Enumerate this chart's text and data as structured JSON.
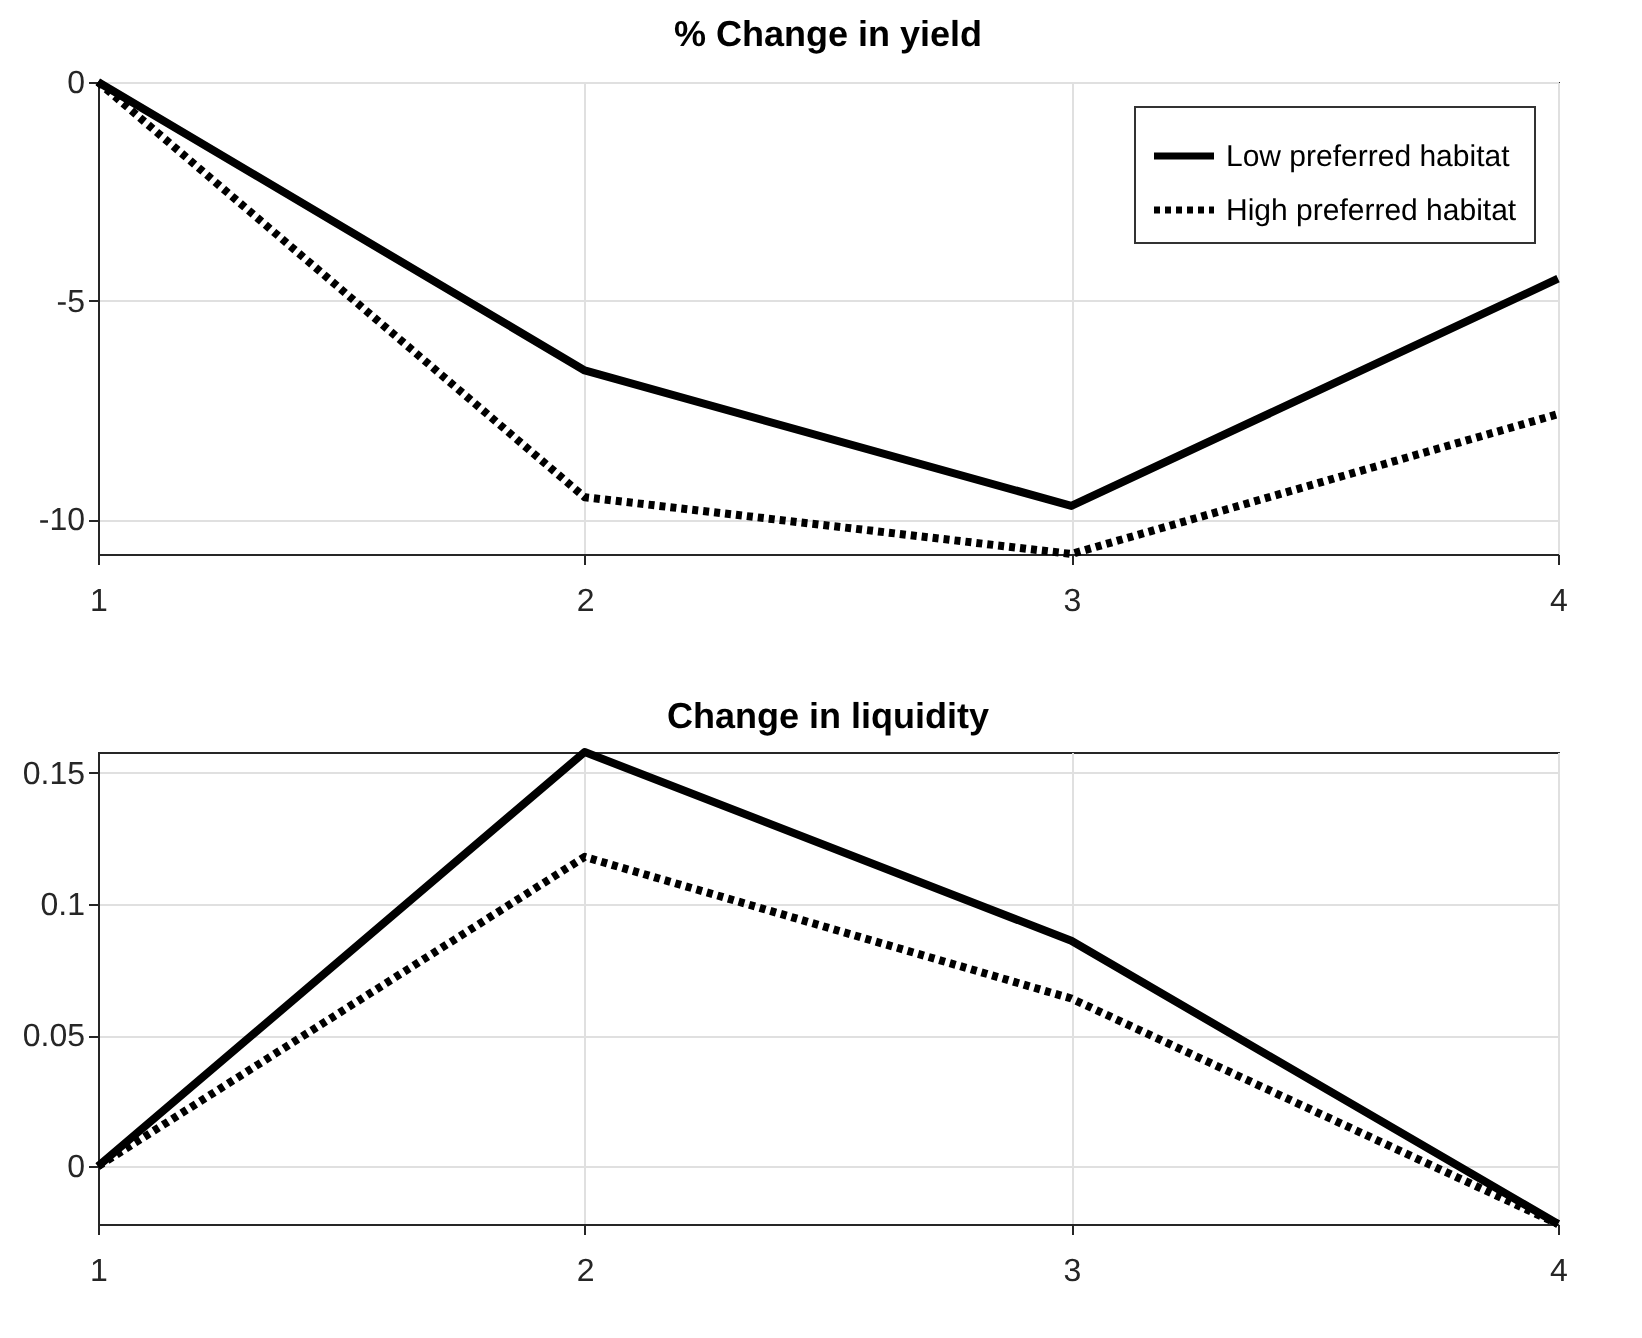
{
  "chart_data": [
    {
      "type": "line",
      "title": "% Change in yield",
      "x": [
        1,
        2,
        3,
        4
      ],
      "xlim": [
        1,
        4
      ],
      "xticks": [
        1,
        2,
        3,
        4
      ],
      "ylim": [
        -10.8,
        0
      ],
      "yticks": [
        -10,
        -5,
        0
      ],
      "grid": true,
      "legend": "top right",
      "series": [
        {
          "name": "Low preferred habitat",
          "color": "#000000",
          "line_style": "solid",
          "values": [
            0,
            -6.6,
            -9.7,
            -4.5
          ]
        },
        {
          "name": "High preferred habitat",
          "color": "#000000",
          "line_style": "dotted",
          "values": [
            0,
            -9.5,
            -10.8,
            -7.6
          ]
        }
      ]
    },
    {
      "type": "line",
      "title": "Change in liquidity",
      "x": [
        1,
        2,
        3,
        4
      ],
      "xlim": [
        1,
        4
      ],
      "xticks": [
        1,
        2,
        3,
        4
      ],
      "ylim": [
        -0.022,
        0.158
      ],
      "yticks": [
        0,
        0.05,
        0.1,
        0.15
      ],
      "grid": true,
      "series": [
        {
          "color": "#000000",
          "line_style": "solid",
          "values": [
            0,
            0.158,
            0.086,
            -0.022
          ]
        },
        {
          "color": "#000000",
          "line_style": "dotted",
          "values": [
            0,
            0.118,
            0.064,
            -0.022
          ]
        }
      ]
    }
  ]
}
